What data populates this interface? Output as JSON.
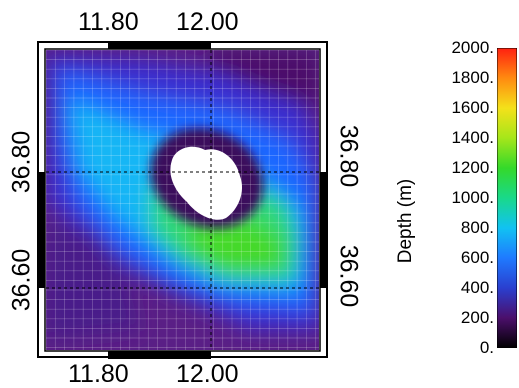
{
  "map": {
    "top_axis": {
      "ticks": [
        "11.80",
        "12.00"
      ]
    },
    "bottom_axis": {
      "ticks": [
        "11.80",
        "12.00"
      ]
    },
    "left_axis": {
      "ticks": [
        "36.80",
        "36.60"
      ]
    },
    "right_axis": {
      "ticks": [
        "36.80",
        "36.60"
      ]
    },
    "grid": true
  },
  "colorbar": {
    "label": "Depth (m)",
    "ticks": [
      "2000.",
      "1800.",
      "1600.",
      "1400.",
      "1200.",
      "1000.",
      "800.",
      "600.",
      "400.",
      "200.",
      "0."
    ],
    "colors": [
      "#000000",
      "#4b0f6b",
      "#2a3fcf",
      "#1f7aff",
      "#11c2f2",
      "#19d98a",
      "#34d92a",
      "#a6e61a",
      "#f4e11a",
      "#ff8a10",
      "#ff2010"
    ]
  }
}
